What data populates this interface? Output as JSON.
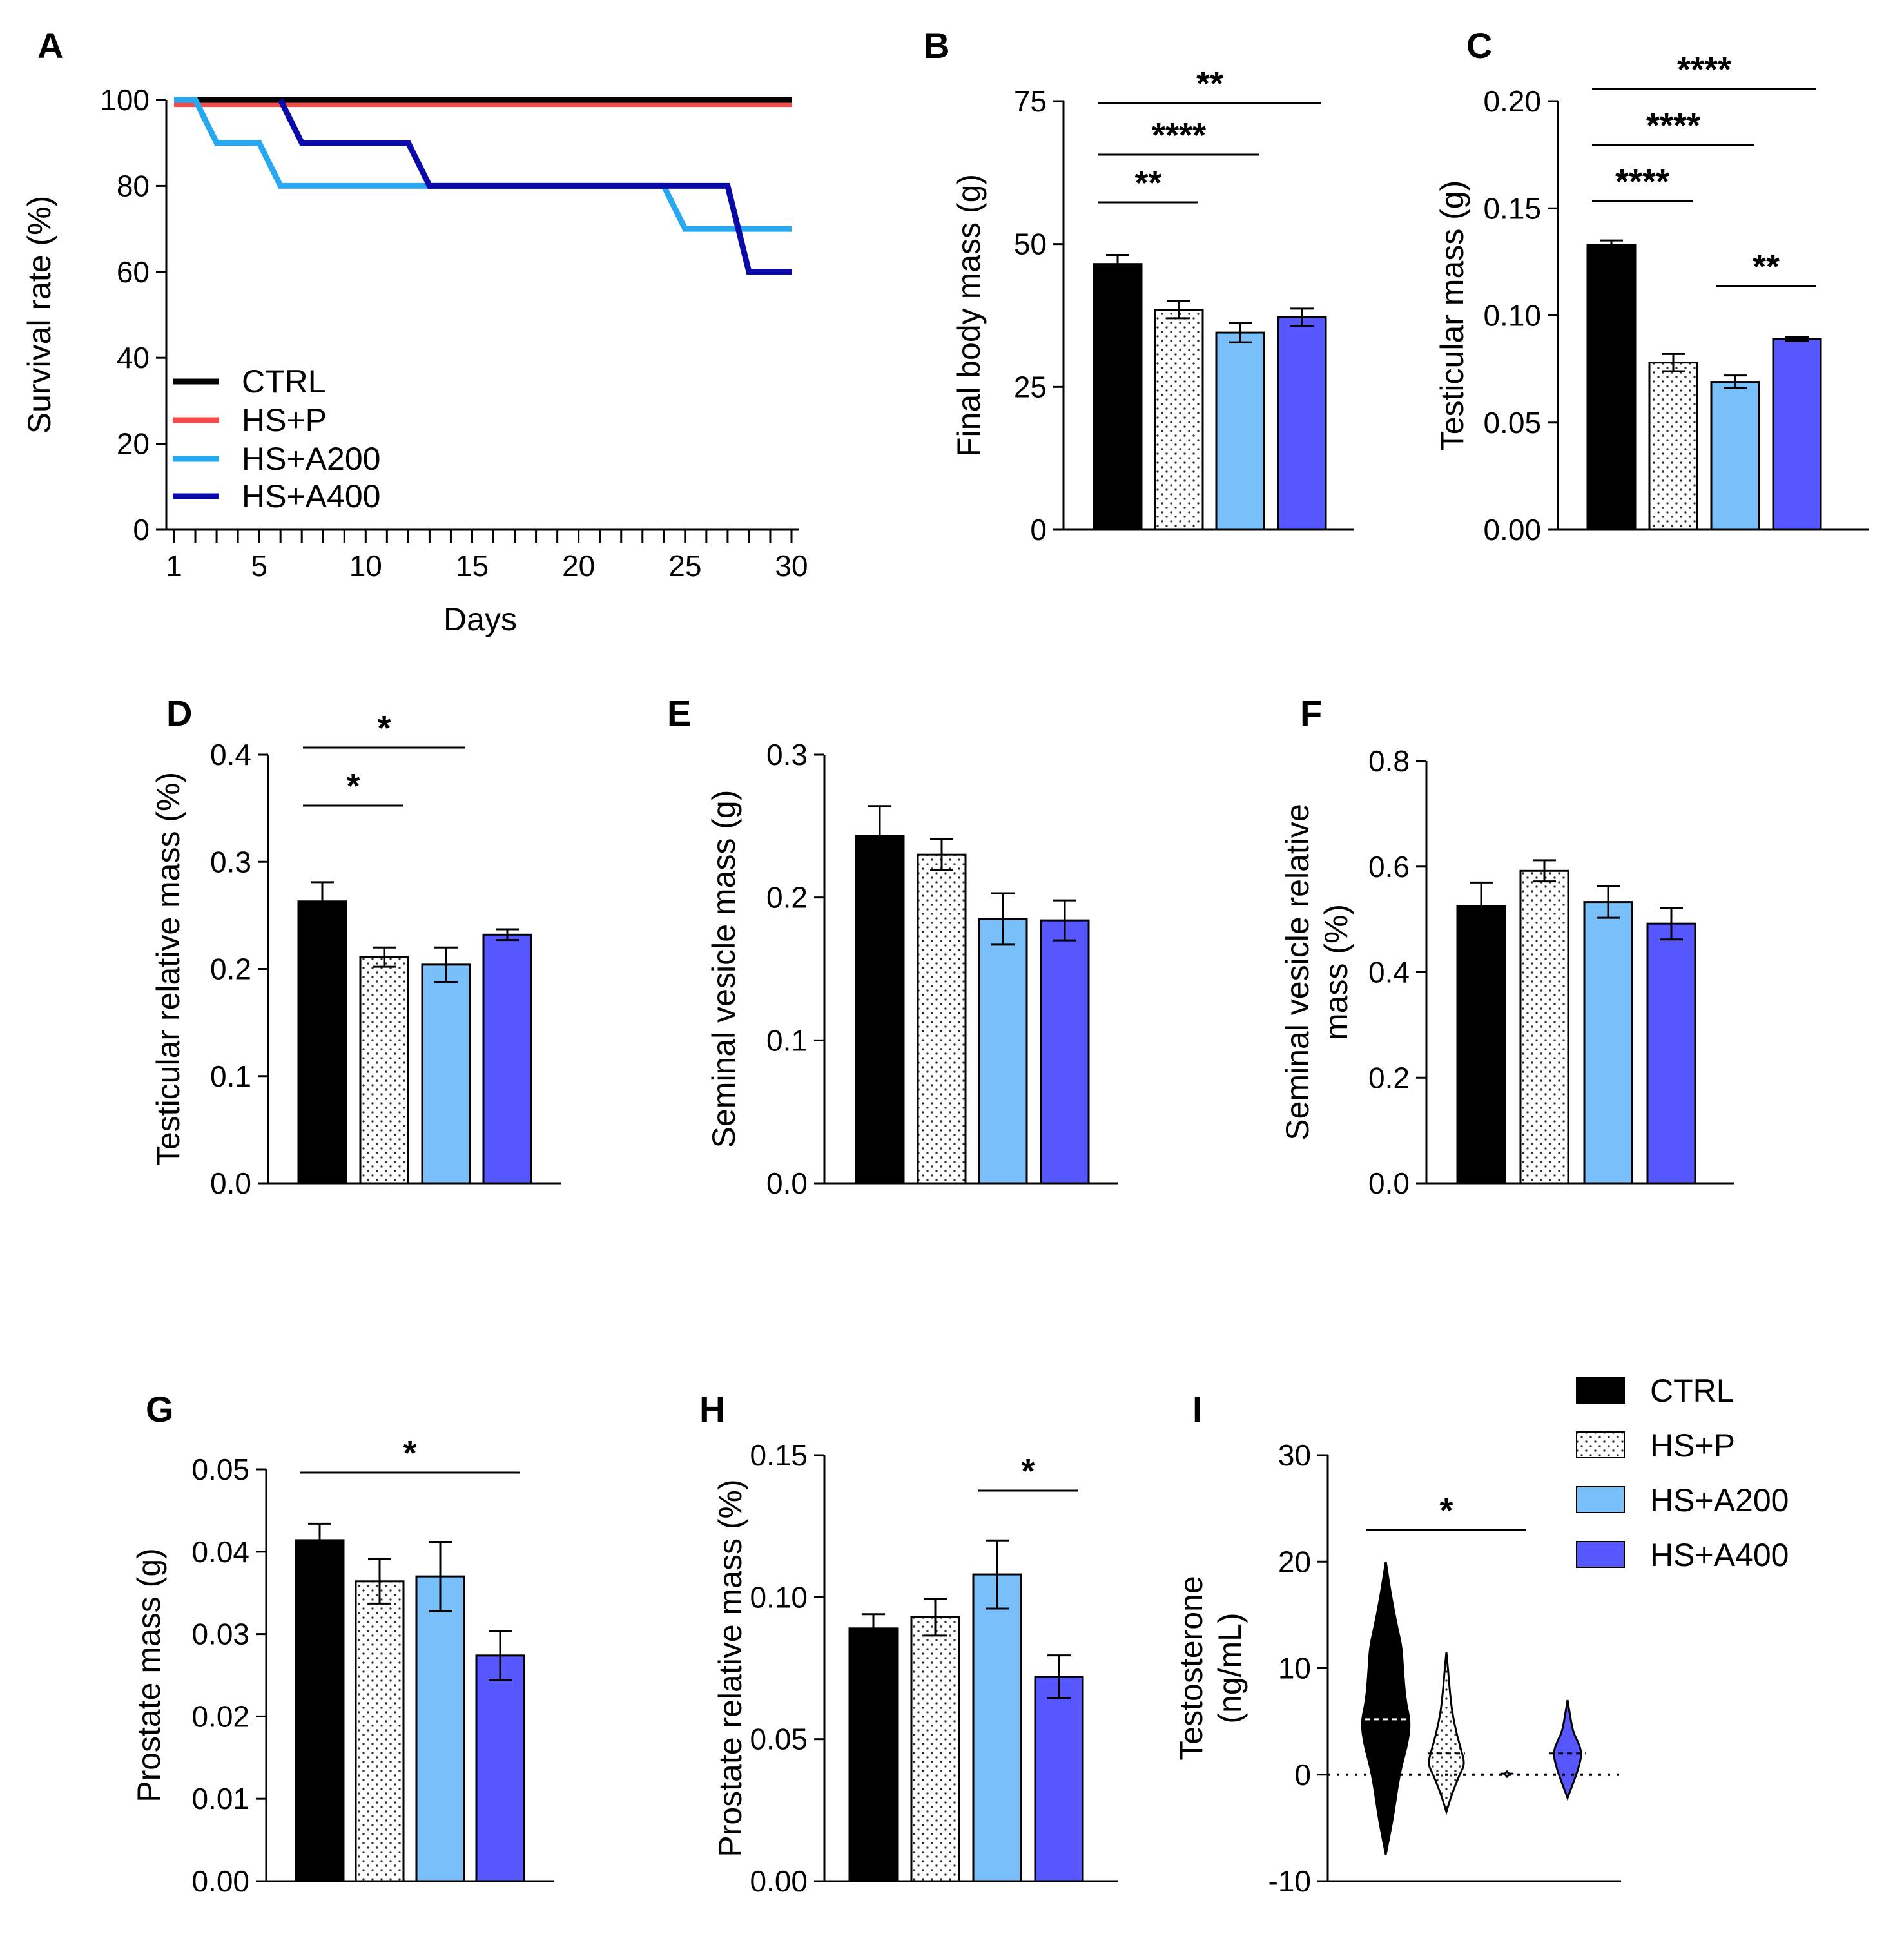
{
  "colors": {
    "CTRL": "#000000",
    "HS+P": "#ffffff",
    "HS+A200": "#79c0fb",
    "HS+A400": "#5757ff",
    "lineP": "#f54b4b",
    "lineA200": "#27a8f0",
    "lineA400": "#0a0aa8"
  },
  "legend": {
    "labels": [
      "CTRL",
      "HS+P",
      "HS+A200",
      "HS+A400"
    ]
  },
  "chart_data": [
    {
      "id": "A",
      "panel": "A",
      "type": "line",
      "xlabel": "Days",
      "ylabel": "Survival rate (%)",
      "xlim": [
        1,
        30
      ],
      "ylim": [
        0,
        100
      ],
      "xticks": [
        1,
        5,
        10,
        15,
        20,
        25,
        30
      ],
      "yticks": [
        0,
        20,
        40,
        60,
        80,
        100
      ],
      "legend": [
        "CTRL",
        "HS+P",
        "HS+A200",
        "HS+A400"
      ],
      "series": [
        {
          "name": "CTRL",
          "x": [
            1,
            30
          ],
          "y": [
            100,
            100
          ]
        },
        {
          "name": "HS+P",
          "x": [
            1,
            30
          ],
          "y": [
            99,
            99
          ]
        },
        {
          "name": "HS+A200",
          "x": [
            1,
            2,
            3,
            5,
            6,
            24,
            25,
            30
          ],
          "y": [
            100,
            100,
            90,
            90,
            80,
            80,
            70,
            70
          ]
        },
        {
          "name": "HS+A400",
          "x": [
            6,
            7,
            12,
            13,
            24,
            27,
            28,
            30
          ],
          "y": [
            100,
            90,
            90,
            80,
            80,
            80,
            60,
            60
          ]
        }
      ]
    },
    {
      "id": "B",
      "panel": "B",
      "type": "bar",
      "ylabel": "Final body mass (g)",
      "ylim": [
        0,
        75
      ],
      "yticks": [
        0,
        25,
        50,
        75
      ],
      "yticklabels": [
        "0",
        "25",
        "50",
        "75"
      ],
      "categories": [
        "CTRL",
        "HS+P",
        "HS+A200",
        "HS+A400"
      ],
      "values": [
        46.5,
        38.5,
        34.5,
        37.2
      ],
      "errors": [
        1.6,
        1.5,
        1.7,
        1.5
      ],
      "significance": [
        {
          "from": 0,
          "to": 1,
          "label": "**"
        },
        {
          "from": 0,
          "to": 2,
          "label": "****"
        },
        {
          "from": 0,
          "to": 3,
          "label": "**"
        }
      ]
    },
    {
      "id": "C",
      "panel": "C",
      "type": "bar",
      "ylabel": "Testicular mass (g)",
      "ylim": [
        0,
        0.2
      ],
      "yticks": [
        0,
        0.05,
        0.1,
        0.15,
        0.2
      ],
      "yticklabels": [
        "0.00",
        "0.05",
        "0.10",
        "0.15",
        "0.20"
      ],
      "categories": [
        "CTRL",
        "HS+P",
        "HS+A200",
        "HS+A400"
      ],
      "values": [
        0.133,
        0.078,
        0.069,
        0.089
      ],
      "errors": [
        0.002,
        0.004,
        0.003,
        0.001
      ],
      "significance": [
        {
          "from": 0,
          "to": 1,
          "label": "****"
        },
        {
          "from": 0,
          "to": 2,
          "label": "****"
        },
        {
          "from": 0,
          "to": 3,
          "label": "****"
        },
        {
          "from": 2,
          "to": 3,
          "label": "**"
        }
      ]
    },
    {
      "id": "D",
      "panel": "D",
      "type": "bar",
      "ylabel": "Testicular relative mass (%)",
      "ylim": [
        0,
        0.4
      ],
      "yticks": [
        0,
        0.1,
        0.2,
        0.3,
        0.4
      ],
      "yticklabels": [
        "0.0",
        "0.1",
        "0.2",
        "0.3",
        "0.4"
      ],
      "categories": [
        "CTRL",
        "HS+P",
        "HS+A200",
        "HS+A400"
      ],
      "values": [
        0.263,
        0.211,
        0.204,
        0.232
      ],
      "errors": [
        0.018,
        0.009,
        0.016,
        0.005
      ],
      "significance": [
        {
          "from": 0,
          "to": 1,
          "label": "*"
        },
        {
          "from": 0,
          "to": 2,
          "label": "*"
        }
      ]
    },
    {
      "id": "E",
      "panel": "E",
      "type": "bar",
      "ylabel": "Seminal vesicle mass (g)",
      "ylim": [
        0,
        0.3
      ],
      "yticks": [
        0,
        0.1,
        0.2,
        0.3
      ],
      "yticklabels": [
        "0.0",
        "0.1",
        "0.2",
        "0.3"
      ],
      "categories": [
        "CTRL",
        "HS+P",
        "HS+A200",
        "HS+A400"
      ],
      "values": [
        0.243,
        0.23,
        0.185,
        0.184
      ],
      "errors": [
        0.021,
        0.011,
        0.018,
        0.014
      ],
      "significance": []
    },
    {
      "id": "F",
      "panel": "F",
      "type": "bar",
      "ylabel": [
        "Seminal vesicle relative",
        "mass (%)"
      ],
      "ylim": [
        0,
        0.8
      ],
      "yticks": [
        0,
        0.2,
        0.4,
        0.6,
        0.8
      ],
      "yticklabels": [
        "0.0",
        "0.2",
        "0.4",
        "0.6",
        "0.8"
      ],
      "categories": [
        "CTRL",
        "HS+P",
        "HS+A200",
        "HS+A400"
      ],
      "values": [
        0.525,
        0.592,
        0.533,
        0.492
      ],
      "errors": [
        0.045,
        0.02,
        0.03,
        0.03
      ],
      "significance": []
    },
    {
      "id": "G",
      "panel": "G",
      "type": "bar",
      "ylabel": "Prostate mass (g)",
      "ylim": [
        0,
        0.05
      ],
      "yticks": [
        0,
        0.01,
        0.02,
        0.03,
        0.04,
        0.05
      ],
      "yticklabels": [
        "0.00",
        "0.01",
        "0.02",
        "0.03",
        "0.04",
        "0.05"
      ],
      "categories": [
        "CTRL",
        "HS+P",
        "HS+A200",
        "HS+A400"
      ],
      "values": [
        0.0414,
        0.0364,
        0.037,
        0.0274
      ],
      "errors": [
        0.002,
        0.0027,
        0.0042,
        0.003
      ],
      "significance": [
        {
          "from": 0,
          "to": 3,
          "label": "*"
        }
      ]
    },
    {
      "id": "H",
      "panel": "H",
      "type": "bar",
      "ylabel": "Prostate relative mass (%)",
      "ylim": [
        0,
        0.15
      ],
      "yticks": [
        0,
        0.05,
        0.1,
        0.15
      ],
      "yticklabels": [
        "0.00",
        "0.05",
        "0.10",
        "0.15"
      ],
      "categories": [
        "CTRL",
        "HS+P",
        "HS+A200",
        "HS+A400"
      ],
      "values": [
        0.089,
        0.093,
        0.108,
        0.072
      ],
      "errors": [
        0.005,
        0.0065,
        0.012,
        0.0075
      ],
      "significance": [
        {
          "from": 2,
          "to": 3,
          "label": "*"
        }
      ]
    },
    {
      "id": "I",
      "panel": "I",
      "type": "violin",
      "ylabel": [
        "Testosterone",
        "(ng/mL)"
      ],
      "ylim": [
        -10,
        30
      ],
      "yticks": [
        -10,
        0,
        10,
        20,
        30
      ],
      "yticklabels": [
        "-10",
        "0",
        "10",
        "20",
        "30"
      ],
      "categories": [
        "CTRL",
        "HS+P",
        "HS+A200",
        "HS+A400"
      ],
      "median": [
        5.2,
        2.0,
        0.1,
        2.0
      ],
      "violins": [
        {
          "y": [
            -7.5,
            -4,
            0,
            3,
            5,
            7,
            10,
            12,
            14,
            17,
            20
          ],
          "w": [
            0,
            0.3,
            0.55,
            0.9,
            1,
            0.8,
            0.7,
            0.65,
            0.45,
            0.2,
            0
          ]
        },
        {
          "y": [
            -3.5,
            -2,
            0,
            1,
            2.5,
            4,
            6,
            8,
            10,
            11.5
          ],
          "w": [
            0,
            0.22,
            0.6,
            0.85,
            0.65,
            0.45,
            0.25,
            0.15,
            0.07,
            0
          ]
        },
        {
          "y": [
            -0.2,
            0,
            0.1,
            0.3
          ],
          "w": [
            0,
            0.25,
            0.3,
            0
          ]
        },
        {
          "y": [
            -2.2,
            -1.2,
            0,
            1,
            2,
            3,
            4,
            5.5,
            7
          ],
          "w": [
            0,
            0.18,
            0.4,
            0.55,
            0.65,
            0.5,
            0.25,
            0.12,
            0
          ]
        }
      ],
      "significance": [
        {
          "from": 0,
          "to": 2,
          "label": "*"
        }
      ]
    }
  ]
}
